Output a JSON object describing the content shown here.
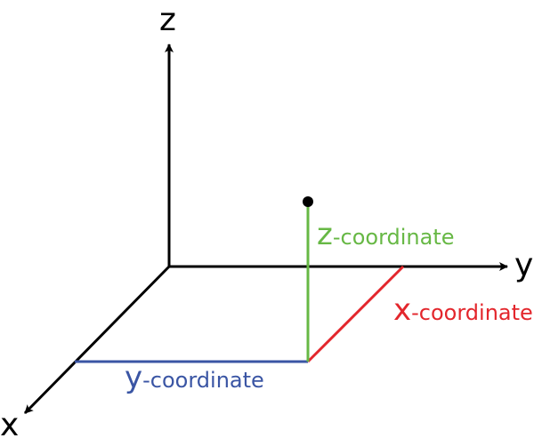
{
  "axes": {
    "x_label": "x",
    "y_label": "y",
    "z_label": "z"
  },
  "coordinates": {
    "x": {
      "letter": "x",
      "suffix": "-coordinate"
    },
    "y": {
      "letter": "y",
      "suffix": "-coordinate"
    },
    "z": {
      "letter": "z",
      "suffix": "-coordinate"
    }
  },
  "colors": {
    "axis": "#000000",
    "x_coordinate": "#e3262c",
    "y_coordinate": "#3a55a4",
    "z_coordinate": "#67b845",
    "point": "#000000"
  }
}
